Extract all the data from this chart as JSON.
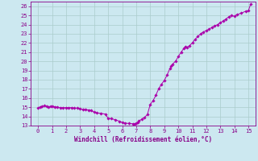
{
  "title": "",
  "xlabel": "Windchill (Refroidissement éolien,°C)",
  "ylabel": "",
  "xlim": [
    -0.5,
    15.5
  ],
  "ylim": [
    13,
    26.5
  ],
  "yticks": [
    13,
    14,
    15,
    16,
    17,
    18,
    19,
    20,
    21,
    22,
    23,
    24,
    25,
    26
  ],
  "xticks": [
    0,
    1,
    2,
    3,
    4,
    5,
    6,
    7,
    8,
    9,
    10,
    11,
    12,
    13,
    14,
    15
  ],
  "line_color": "#aa00aa",
  "marker_color": "#aa00aa",
  "bg_color": "#cce8f0",
  "grid_color": "#aacccc",
  "x": [
    0.0,
    0.15,
    0.3,
    0.45,
    0.6,
    0.75,
    0.9,
    1.0,
    1.2,
    1.4,
    1.6,
    1.8,
    2.0,
    2.2,
    2.4,
    2.6,
    2.8,
    3.0,
    3.2,
    3.4,
    3.6,
    3.8,
    4.0,
    4.2,
    4.5,
    4.8,
    5.0,
    5.2,
    5.5,
    5.8,
    6.0,
    6.2,
    6.5,
    6.8,
    6.9,
    7.0,
    7.1,
    7.2,
    7.4,
    7.6,
    7.8,
    8.0,
    8.2,
    8.4,
    8.6,
    8.8,
    9.0,
    9.2,
    9.4,
    9.5,
    9.6,
    9.8,
    10.0,
    10.2,
    10.4,
    10.5,
    10.6,
    10.8,
    11.0,
    11.2,
    11.4,
    11.6,
    11.8,
    12.0,
    12.2,
    12.4,
    12.6,
    12.8,
    13.0,
    13.2,
    13.4,
    13.6,
    13.8,
    14.0,
    14.2,
    14.5,
    14.8,
    15.0,
    15.15
  ],
  "y": [
    14.9,
    15.05,
    15.1,
    15.15,
    15.1,
    15.05,
    15.1,
    15.1,
    15.05,
    15.0,
    14.95,
    14.95,
    14.95,
    14.95,
    14.95,
    14.9,
    14.9,
    14.85,
    14.75,
    14.75,
    14.7,
    14.65,
    14.45,
    14.38,
    14.33,
    14.25,
    13.8,
    13.75,
    13.65,
    13.48,
    13.35,
    13.28,
    13.22,
    13.2,
    13.2,
    13.25,
    13.35,
    13.5,
    13.7,
    13.9,
    14.2,
    15.3,
    15.7,
    16.3,
    17.0,
    17.5,
    17.9,
    18.5,
    19.2,
    19.5,
    19.7,
    20.0,
    20.5,
    21.0,
    21.4,
    21.6,
    21.5,
    21.7,
    22.0,
    22.4,
    22.7,
    23.0,
    23.2,
    23.35,
    23.5,
    23.7,
    23.85,
    24.0,
    24.2,
    24.4,
    24.6,
    24.85,
    25.0,
    24.9,
    25.1,
    25.25,
    25.45,
    25.5,
    26.2
  ]
}
